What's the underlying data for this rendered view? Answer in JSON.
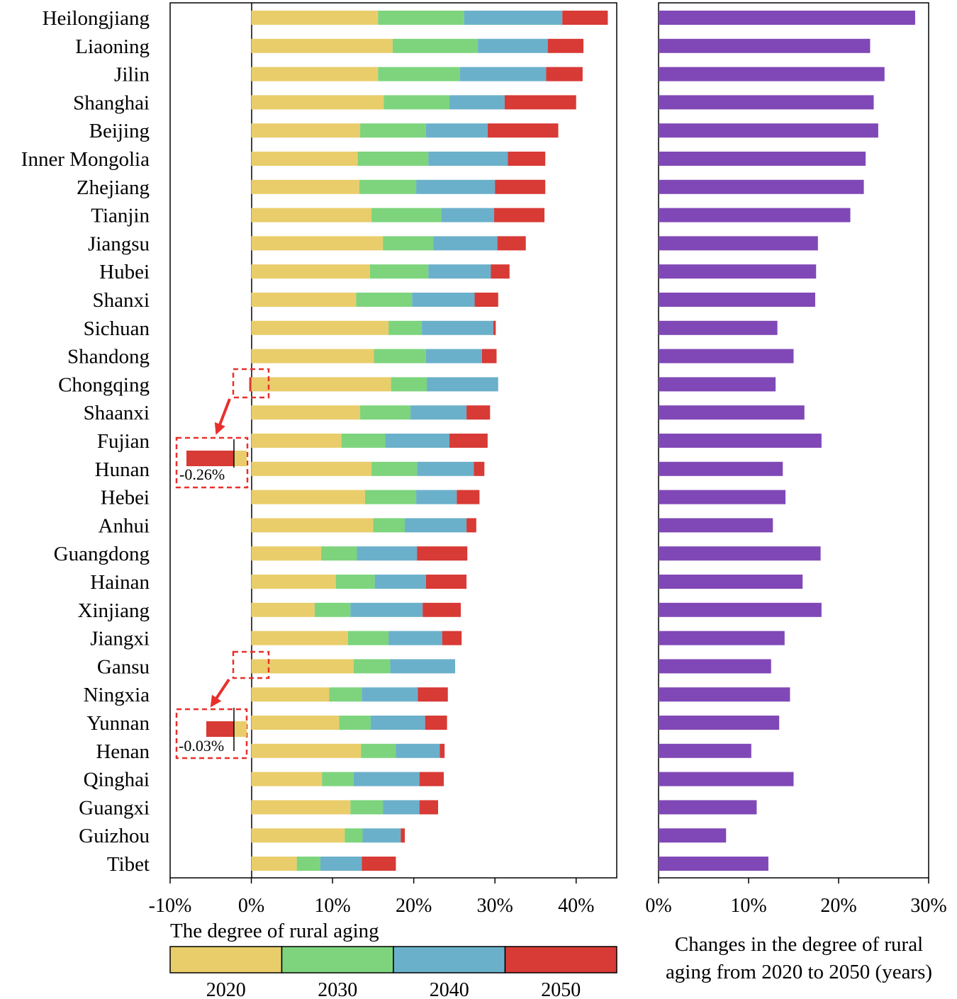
{
  "chart_data": [
    {
      "type": "bar",
      "stacked": true,
      "orientation": "horizontal",
      "title": "",
      "xlabel": "The degree of rural aging",
      "xlim": [
        -0.1,
        0.45
      ],
      "xticks": [
        "-10%",
        "0%",
        "10%",
        "20%",
        "30%",
        "40%"
      ],
      "categories": [
        "Heilongjiang",
        "Liaoning",
        "Jilin",
        "Shanghai",
        "Beijing",
        "Inner Mongolia",
        "Zhejiang",
        "Tianjin",
        "Jiangsu",
        "Hubei",
        "Shanxi",
        "Sichuan",
        "Shandong",
        "Chongqing",
        "Shaanxi",
        "Fujian",
        "Hunan",
        "Hebei",
        "Anhui",
        "Guangdong",
        "Hainan",
        "Xinjiang",
        "Jiangxi",
        "Gansu",
        "Ningxia",
        "Yunnan",
        "Henan",
        "Qinghai",
        "Guangxi",
        "Guizhou",
        "Tibet"
      ],
      "series": [
        {
          "name": "2020",
          "color": "#e9cd6a",
          "values": [
            0.156,
            0.174,
            0.156,
            0.163,
            0.134,
            0.131,
            0.133,
            0.148,
            0.162,
            0.146,
            0.129,
            0.169,
            0.151,
            0.172,
            0.134,
            0.111,
            0.148,
            0.14,
            0.15,
            0.086,
            0.104,
            0.078,
            0.119,
            0.126,
            0.096,
            0.108,
            0.135,
            0.087,
            0.122,
            0.115,
            0.056
          ]
        },
        {
          "name": "2030",
          "color": "#7dd47d",
          "values": [
            0.106,
            0.105,
            0.101,
            0.081,
            0.081,
            0.087,
            0.07,
            0.086,
            0.062,
            0.072,
            0.069,
            0.041,
            0.064,
            0.044,
            0.062,
            0.054,
            0.056,
            0.063,
            0.039,
            0.044,
            0.048,
            0.044,
            0.05,
            0.045,
            0.04,
            0.039,
            0.043,
            0.039,
            0.04,
            0.022,
            0.029
          ]
        },
        {
          "name": "2040",
          "color": "#6bb0ca",
          "values": [
            0.121,
            0.086,
            0.106,
            0.068,
            0.076,
            0.098,
            0.097,
            0.065,
            0.079,
            0.077,
            0.077,
            0.088,
            0.069,
            0.088,
            0.069,
            0.079,
            0.07,
            0.05,
            0.076,
            0.074,
            0.063,
            0.089,
            0.066,
            0.08,
            0.069,
            0.067,
            0.054,
            0.081,
            0.045,
            0.047,
            0.051
          ]
        },
        {
          "name": "2050",
          "color": "#d83a35",
          "values": [
            0.056,
            0.044,
            0.045,
            0.088,
            0.087,
            0.046,
            0.062,
            0.062,
            0.035,
            0.023,
            0.029,
            0.003,
            0.018,
            -0.0026,
            0.029,
            0.047,
            0.013,
            0.028,
            0.012,
            0.062,
            0.05,
            0.047,
            0.024,
            -0.0003,
            0.037,
            0.027,
            0.006,
            0.03,
            0.023,
            0.005,
            0.042
          ]
        }
      ],
      "legend": [
        "2020",
        "2030",
        "2040",
        "2050"
      ],
      "legend_position": "bottom",
      "annotations": [
        {
          "category": "Chongqing",
          "series": "2050",
          "value": -0.0026,
          "text": "-0.26%"
        },
        {
          "category": "Gansu",
          "series": "2050",
          "value": -0.0003,
          "text": "-0.03%"
        }
      ]
    },
    {
      "type": "bar",
      "orientation": "horizontal",
      "title": "",
      "xlabel": "Changes in the degree of rural aging from 2020 to 2050 (years)",
      "xlabel_lines": [
        "Changes in the degree of rural",
        "aging from 2020 to 2050 (years)"
      ],
      "xlim": [
        0,
        0.3
      ],
      "xticks": [
        "0%",
        "10%",
        "20%",
        "30%"
      ],
      "color": "#8048b6",
      "categories": [
        "Heilongjiang",
        "Liaoning",
        "Jilin",
        "Shanghai",
        "Beijing",
        "Inner Mongolia",
        "Zhejiang",
        "Tianjin",
        "Jiangsu",
        "Hubei",
        "Shanxi",
        "Sichuan",
        "Shandong",
        "Chongqing",
        "Shaanxi",
        "Fujian",
        "Hunan",
        "Hebei",
        "Anhui",
        "Guangdong",
        "Hainan",
        "Xinjiang",
        "Jiangxi",
        "Gansu",
        "Ningxia",
        "Yunnan",
        "Henan",
        "Qinghai",
        "Guangxi",
        "Guizhou",
        "Tibet"
      ],
      "values": [
        0.285,
        0.235,
        0.251,
        0.239,
        0.244,
        0.23,
        0.228,
        0.213,
        0.177,
        0.175,
        0.174,
        0.132,
        0.15,
        0.13,
        0.162,
        0.181,
        0.138,
        0.141,
        0.127,
        0.18,
        0.16,
        0.181,
        0.14,
        0.125,
        0.146,
        0.134,
        0.103,
        0.15,
        0.109,
        0.075,
        0.122
      ]
    }
  ]
}
